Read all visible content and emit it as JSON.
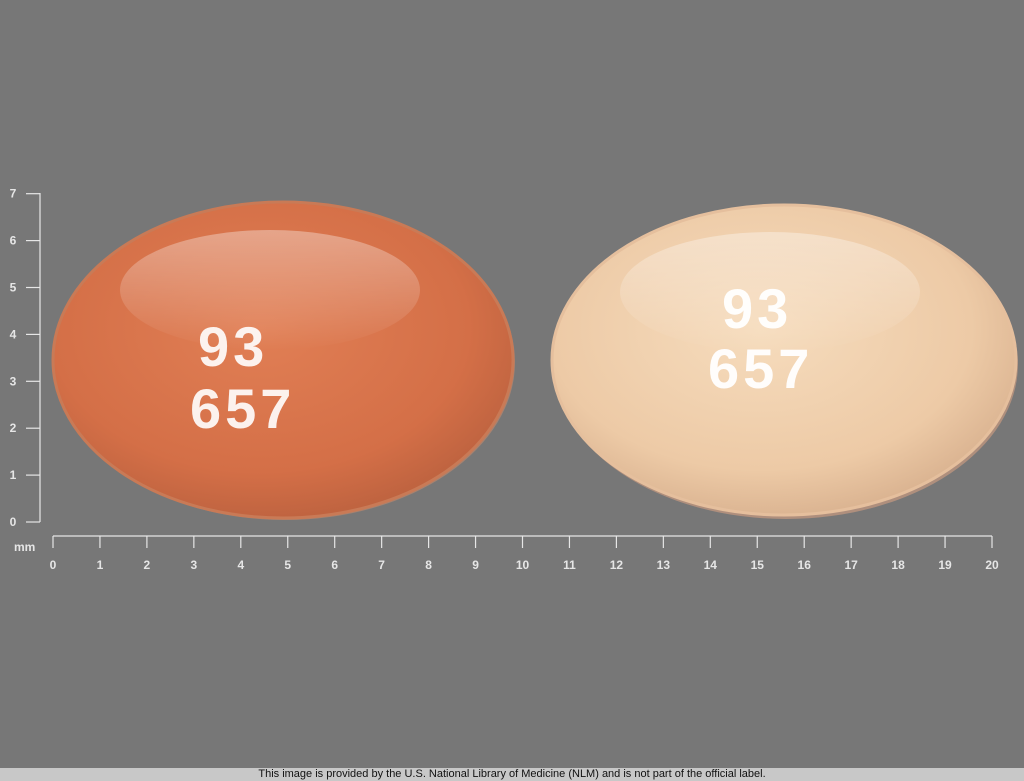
{
  "colors": {
    "background": "#777777",
    "ruler": "#e6e6e6",
    "pill_left": "#d9754d",
    "pill_right": "#f0cfae",
    "imprint": "#ffffff"
  },
  "ruler": {
    "unit_label": "mm",
    "x_ticks": [
      "0",
      "1",
      "2",
      "3",
      "4",
      "5",
      "6",
      "7",
      "8",
      "9",
      "10",
      "11",
      "12",
      "13",
      "14",
      "15",
      "16",
      "17",
      "18",
      "19",
      "20"
    ],
    "y_ticks": [
      "0",
      "1",
      "2",
      "3",
      "4",
      "5",
      "6",
      "7"
    ]
  },
  "pills": [
    {
      "name": "orange-capsule",
      "color": "#d9754d",
      "imprint_line1": "93",
      "imprint_line2": "657"
    },
    {
      "name": "beige-capsule",
      "color": "#f0cfae",
      "imprint_line1": "93",
      "imprint_line2": "657"
    }
  ],
  "footer": {
    "text": "This image is provided by the U.S. National Library of Medicine (NLM) and is not part of the official label."
  }
}
